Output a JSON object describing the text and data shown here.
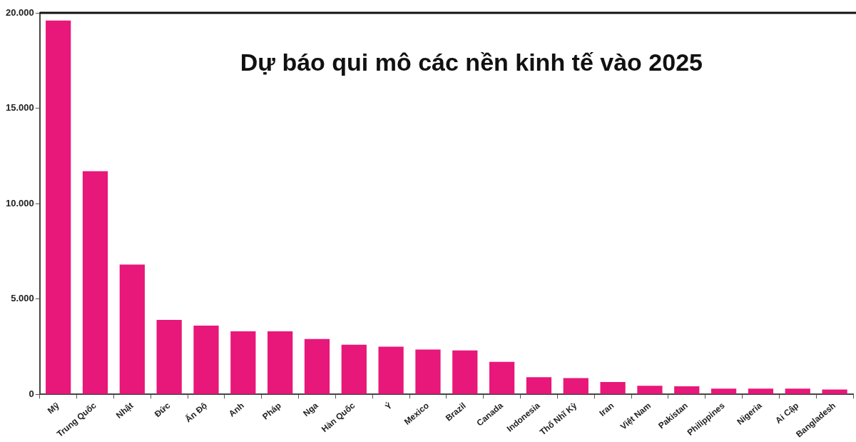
{
  "chart_data": {
    "type": "bar",
    "title": "Dự báo qui mô các nền kinh tế vào 2025",
    "categories": [
      "Mỹ",
      "Trung Quốc",
      "Nhật",
      "Đức",
      "Ấn Độ",
      "Anh",
      "Pháp",
      "Nga",
      "Hàn Quốc",
      "Ý",
      "Mexico",
      "Brazil",
      "Canada",
      "Indonesia",
      "Thổ Nhĩ Kỳ",
      "Iran",
      "Việt Nam",
      "Pakistan",
      "Philippines",
      "Nigeria",
      "Ai Cập",
      "Bangladesh"
    ],
    "values": [
      19600,
      11700,
      6800,
      3900,
      3600,
      3300,
      3300,
      2900,
      2600,
      2500,
      2350,
      2300,
      1700,
      900,
      850,
      650,
      450,
      420,
      300,
      300,
      300,
      250
    ],
    "color": "#e8177a",
    "ylim": [
      0,
      20000
    ],
    "yticks": [
      {
        "value": 0,
        "label": "0"
      },
      {
        "value": 5000,
        "label": "5.000"
      },
      {
        "value": 10000,
        "label": "10.000"
      },
      {
        "value": 15000,
        "label": "15.000"
      },
      {
        "value": 20000,
        "label": "20.000"
      }
    ],
    "grid": false
  }
}
